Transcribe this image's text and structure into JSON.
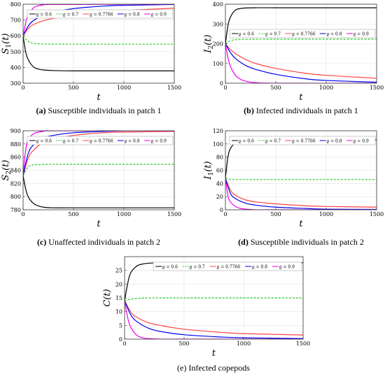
{
  "legend": [
    "ϱ = 0.6",
    "ϱ = 0.7",
    "ϱ = 0.7766",
    "ϱ = 0.8",
    "ϱ = 0.9"
  ],
  "series_colors": [
    "#000000",
    "#22cc22",
    "#ff4444",
    "#0000ee",
    "#ee00ee"
  ],
  "series_dash": [
    false,
    true,
    false,
    false,
    false
  ],
  "chart_data": [
    {
      "type": "line",
      "panel": "a",
      "caption_letter": "(a)",
      "caption_text": " Susceptible individuals in patch 1",
      "xlabel": "t",
      "ylabel_main": "S",
      "ylabel_sub": "1",
      "ylabel_arg": "(t)",
      "xlim": [
        0,
        1500
      ],
      "ylim": [
        300,
        800
      ],
      "xticks": [
        0,
        500,
        1000,
        1500
      ],
      "yticks": [
        300,
        400,
        500,
        600,
        700,
        800
      ],
      "grid": true,
      "legend_position": "top",
      "series": [
        {
          "name": "ϱ = 0.6",
          "x": [
            0,
            25,
            50,
            100,
            150,
            200,
            300,
            500,
            1000,
            1500
          ],
          "y": [
            600,
            500,
            450,
            405,
            390,
            384,
            380,
            378,
            378,
            378
          ]
        },
        {
          "name": "ϱ = 0.7",
          "x": [
            0,
            50,
            100,
            200,
            500,
            1000,
            1500
          ],
          "y": [
            600,
            565,
            553,
            548,
            547,
            547,
            547
          ]
        },
        {
          "name": "ϱ = 0.7766",
          "x": [
            0,
            50,
            100,
            200,
            300,
            500,
            800,
            1000,
            1500
          ],
          "y": [
            600,
            645,
            670,
            695,
            710,
            730,
            750,
            760,
            775
          ]
        },
        {
          "name": "ϱ = 0.8",
          "x": [
            0,
            50,
            100,
            200,
            300,
            500,
            800,
            1000,
            1500
          ],
          "y": [
            600,
            660,
            695,
            730,
            750,
            772,
            788,
            793,
            798
          ]
        },
        {
          "name": "ϱ = 0.9",
          "x": [
            0,
            25,
            50,
            100,
            150,
            200,
            300,
            1500
          ],
          "y": [
            600,
            680,
            730,
            775,
            790,
            795,
            798,
            800
          ]
        }
      ]
    },
    {
      "type": "line",
      "panel": "b",
      "caption_letter": "(b)",
      "caption_text": " Infected individuals in patch 1",
      "xlabel": "t",
      "ylabel_main": "I",
      "ylabel_sub": "2",
      "ylabel_arg": "(t)",
      "xlim": [
        0,
        1500
      ],
      "ylim": [
        0,
        400
      ],
      "xticks": [
        0,
        500,
        1000,
        1500
      ],
      "yticks": [
        0,
        100,
        200,
        300,
        400
      ],
      "grid": true,
      "legend_position": "middle",
      "series": [
        {
          "name": "ϱ = 0.6",
          "x": [
            0,
            25,
            50,
            100,
            150,
            200,
            300,
            500,
            1500
          ],
          "y": [
            200,
            290,
            335,
            370,
            378,
            381,
            382,
            382,
            382
          ]
        },
        {
          "name": "ϱ = 0.7",
          "x": [
            0,
            50,
            100,
            200,
            500,
            1500
          ],
          "y": [
            200,
            215,
            220,
            222,
            223,
            223
          ]
        },
        {
          "name": "ϱ = 0.7766",
          "x": [
            0,
            50,
            100,
            200,
            300,
            500,
            800,
            1000,
            1500
          ],
          "y": [
            200,
            170,
            150,
            120,
            100,
            75,
            50,
            40,
            25
          ]
        },
        {
          "name": "ϱ = 0.8",
          "x": [
            0,
            50,
            100,
            200,
            300,
            500,
            800,
            1000,
            1500
          ],
          "y": [
            200,
            155,
            125,
            90,
            70,
            45,
            22,
            14,
            5
          ]
        },
        {
          "name": "ϱ = 0.9",
          "x": [
            0,
            25,
            50,
            100,
            150,
            200,
            300,
            500,
            1500
          ],
          "y": [
            200,
            130,
            85,
            40,
            20,
            10,
            3,
            0,
            0
          ]
        }
      ]
    },
    {
      "type": "line",
      "panel": "c",
      "caption_letter": "(c)",
      "caption_text": " Unaffected individuals in patch 2",
      "xlabel": "t",
      "ylabel_main": "S",
      "ylabel_sub": "2",
      "ylabel_arg": "(t)",
      "xlim": [
        0,
        1500
      ],
      "ylim": [
        780,
        900
      ],
      "xticks": [
        0,
        500,
        1000,
        1500
      ],
      "yticks": [
        780,
        800,
        820,
        840,
        860,
        880,
        900
      ],
      "grid": true,
      "legend_position": "top",
      "series": [
        {
          "name": "ϱ = 0.6",
          "x": [
            0,
            25,
            50,
            100,
            150,
            200,
            300,
            500,
            1500
          ],
          "y": [
            832,
            812,
            800,
            790,
            786,
            784,
            783,
            783,
            783
          ]
        },
        {
          "name": "ϱ = 0.7",
          "x": [
            0,
            50,
            100,
            200,
            500,
            1500
          ],
          "y": [
            832,
            845,
            848,
            849,
            849,
            849
          ]
        },
        {
          "name": "ϱ = 0.7766",
          "x": [
            0,
            50,
            100,
            200,
            300,
            500,
            800,
            1000,
            1500
          ],
          "y": [
            832,
            858,
            870,
            882,
            887,
            893,
            897,
            898,
            899
          ]
        },
        {
          "name": "ϱ = 0.8",
          "x": [
            0,
            50,
            100,
            200,
            300,
            500,
            800,
            1000,
            1500
          ],
          "y": [
            832,
            865,
            878,
            889,
            893,
            897,
            899,
            900,
            900
          ]
        },
        {
          "name": "ϱ = 0.9",
          "x": [
            0,
            25,
            50,
            100,
            150,
            200,
            300,
            1500
          ],
          "y": [
            832,
            870,
            886,
            895,
            898,
            899,
            900,
            900
          ]
        }
      ]
    },
    {
      "type": "line",
      "panel": "d",
      "caption_letter": "(d)",
      "caption_text": " Susceptible individuals in patch 2",
      "xlabel": "t",
      "ylabel_main": "I",
      "ylabel_sub": "1",
      "ylabel_arg": "(t)",
      "xlim": [
        0,
        1500
      ],
      "ylim": [
        0,
        120
      ],
      "xticks": [
        0,
        500,
        1000,
        1500
      ],
      "yticks": [
        0,
        20,
        40,
        60,
        80,
        100,
        120
      ],
      "grid": true,
      "legend_position": "top",
      "series": [
        {
          "name": "ϱ = 0.6",
          "x": [
            0,
            25,
            50,
            100,
            150,
            200,
            300,
            500,
            1500
          ],
          "y": [
            48,
            80,
            93,
            102,
            105,
            106,
            106,
            106,
            106
          ]
        },
        {
          "name": "ϱ = 0.7",
          "x": [
            0,
            50,
            100,
            200,
            500,
            1500
          ],
          "y": [
            48,
            46,
            46,
            46,
            46,
            46
          ]
        },
        {
          "name": "ϱ = 0.7766",
          "x": [
            0,
            50,
            100,
            200,
            300,
            500,
            800,
            1000,
            1500
          ],
          "y": [
            48,
            30,
            22,
            15,
            12,
            9,
            6,
            5,
            4
          ]
        },
        {
          "name": "ϱ = 0.8",
          "x": [
            0,
            50,
            100,
            200,
            300,
            500,
            800,
            1000,
            1500
          ],
          "y": [
            48,
            25,
            17,
            10,
            7,
            4,
            2,
            1,
            0.5
          ]
        },
        {
          "name": "ϱ = 0.9",
          "x": [
            0,
            25,
            50,
            100,
            150,
            200,
            300,
            500,
            1500
          ],
          "y": [
            48,
            22,
            12,
            5,
            2,
            1,
            0,
            0,
            0
          ]
        }
      ]
    },
    {
      "type": "line",
      "panel": "e",
      "caption_letter": "",
      "caption_text": "(e) Infected copepods",
      "xlabel": "t",
      "ylabel_main": "C",
      "ylabel_sub": "",
      "ylabel_arg": "(t)",
      "xlim": [
        0,
        1500
      ],
      "ylim": [
        0,
        30
      ],
      "xticks": [
        0,
        500,
        1000,
        1500
      ],
      "yticks": [
        0,
        5,
        10,
        15,
        20,
        25
      ],
      "grid": true,
      "legend_position": "top",
      "series": [
        {
          "name": "ϱ = 0.6",
          "x": [
            0,
            25,
            50,
            100,
            150,
            200,
            300,
            500,
            1500
          ],
          "y": [
            14,
            20,
            24,
            26.5,
            27.3,
            27.6,
            27.8,
            27.8,
            27.8
          ]
        },
        {
          "name": "ϱ = 0.7",
          "x": [
            0,
            50,
            100,
            200,
            500,
            1500
          ],
          "y": [
            14,
            14.5,
            14.8,
            15,
            15,
            15
          ]
        },
        {
          "name": "ϱ = 0.7766",
          "x": [
            0,
            50,
            100,
            200,
            300,
            500,
            800,
            1000,
            1500
          ],
          "y": [
            14,
            10,
            8,
            6,
            5,
            3.6,
            2.5,
            2,
            1.5
          ]
        },
        {
          "name": "ϱ = 0.8",
          "x": [
            0,
            50,
            100,
            200,
            300,
            500,
            800,
            1000,
            1500
          ],
          "y": [
            14,
            9,
            6.5,
            4,
            2.8,
            1.6,
            0.8,
            0.5,
            0.2
          ]
        },
        {
          "name": "ϱ = 0.9",
          "x": [
            0,
            25,
            50,
            100,
            150,
            200,
            300,
            500,
            1500
          ],
          "y": [
            14,
            8,
            4.5,
            1.5,
            0.5,
            0.2,
            0,
            0,
            0
          ]
        }
      ]
    }
  ]
}
